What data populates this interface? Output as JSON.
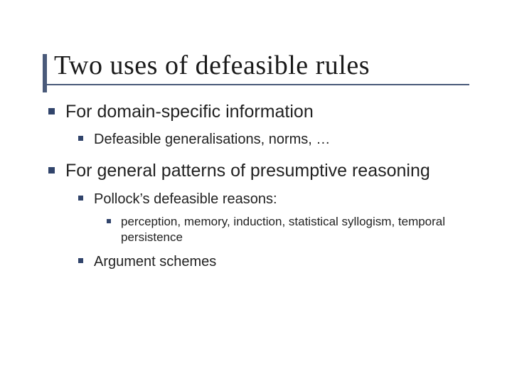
{
  "colors": {
    "accent": "#31446b",
    "title_bar": "#4a5a7a",
    "text": "#1a1a1a",
    "background": "#ffffff"
  },
  "typography": {
    "title_family": "Georgia, Times New Roman, serif",
    "body_family": "Verdana, Geneva, sans-serif",
    "title_size_pt": 29,
    "lvl1_size_pt": 19,
    "lvl2_size_pt": 15,
    "lvl3_size_pt": 13
  },
  "slide": {
    "title": "Two uses of defeasible rules",
    "bullets": [
      {
        "text": "For domain-specific information",
        "children": [
          {
            "text": "Defeasible generalisations, norms, …"
          }
        ]
      },
      {
        "text": "For general patterns of presumptive reasoning",
        "children": [
          {
            "text": "Pollock’s defeasible reasons:",
            "children": [
              {
                "text": "perception, memory, induction, statistical syllogism, temporal persistence"
              }
            ]
          },
          {
            "text": "Argument schemes"
          }
        ]
      }
    ]
  }
}
